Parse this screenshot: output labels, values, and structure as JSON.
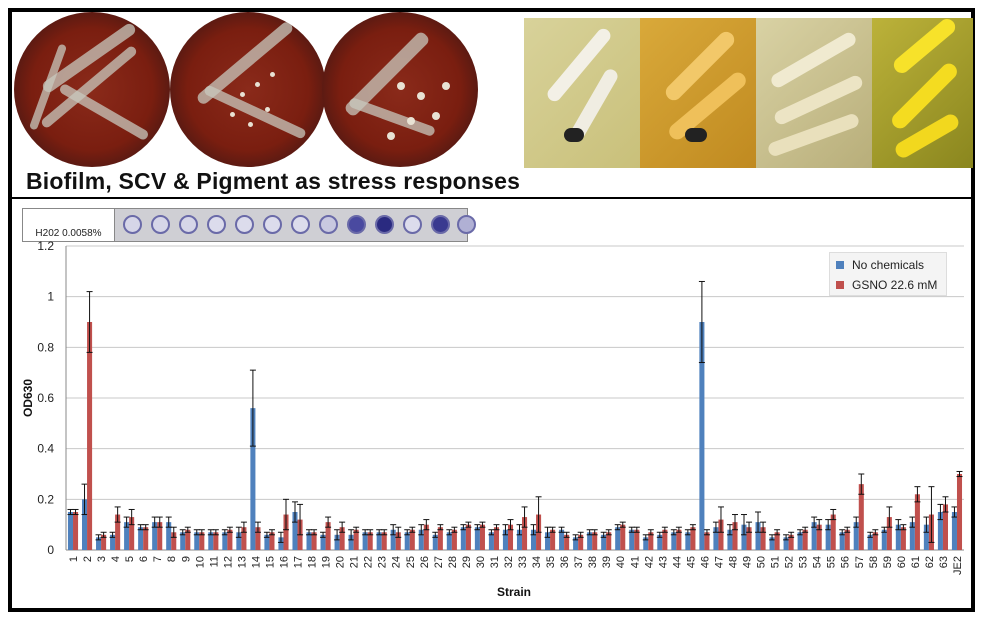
{
  "title": "Biofilm, SCV & Pigment as stress responses",
  "well_strip_label": "H202 0.0058%",
  "photos": {
    "blood_agar_plates": [
      "plate-1",
      "plate-2",
      "plate-3"
    ],
    "pigment_plates": [
      "pigment-1",
      "pigment-2",
      "pigment-3",
      "pigment-4"
    ]
  },
  "legend": [
    {
      "label": "No chemicals",
      "color": "#4f81bd"
    },
    {
      "label": "GSNO 22.6 mM",
      "color": "#c0504d"
    }
  ],
  "chart_data": {
    "type": "bar",
    "title": "",
    "xlabel": "Strain",
    "ylabel": "OD630",
    "ylim": [
      0,
      1.2
    ],
    "yticks": [
      "0",
      "0.2",
      "0.4",
      "0.6",
      "0.8",
      "1",
      "1.2"
    ],
    "grid": true,
    "legend_position": "top-right",
    "categories": [
      "1",
      "2",
      "3",
      "4",
      "5",
      "6",
      "7",
      "8",
      "9",
      "10",
      "11",
      "12",
      "13",
      "14",
      "15",
      "16",
      "17",
      "18",
      "19",
      "20",
      "21",
      "22",
      "23",
      "24",
      "25",
      "26",
      "27",
      "28",
      "29",
      "30",
      "31",
      "32",
      "33",
      "34",
      "35",
      "36",
      "37",
      "38",
      "39",
      "40",
      "41",
      "42",
      "43",
      "44",
      "45",
      "46",
      "47",
      "48",
      "49",
      "50",
      "51",
      "52",
      "53",
      "54",
      "55",
      "56",
      "57",
      "58",
      "59",
      "60",
      "61",
      "62",
      "63",
      "JE2"
    ],
    "series": [
      {
        "name": "No chemicals",
        "color": "#4f81bd",
        "values": [
          0.15,
          0.2,
          0.05,
          0.06,
          0.11,
          0.09,
          0.11,
          0.11,
          0.07,
          0.07,
          0.07,
          0.07,
          0.07,
          0.56,
          0.06,
          0.05,
          0.15,
          0.07,
          0.06,
          0.06,
          0.06,
          0.07,
          0.07,
          0.08,
          0.07,
          0.08,
          0.06,
          0.07,
          0.09,
          0.09,
          0.07,
          0.08,
          0.08,
          0.08,
          0.07,
          0.08,
          0.05,
          0.07,
          0.06,
          0.09,
          0.08,
          0.05,
          0.06,
          0.07,
          0.07,
          0.9,
          0.09,
          0.08,
          0.1,
          0.11,
          0.05,
          0.05,
          0.07,
          0.11,
          0.1,
          0.07,
          0.11,
          0.06,
          0.08,
          0.1,
          0.11,
          0.1,
          0.15,
          0.15
        ],
        "errors": [
          0.01,
          0.06,
          0.01,
          0.01,
          0.02,
          0.01,
          0.02,
          0.02,
          0.01,
          0.01,
          0.01,
          0.01,
          0.02,
          0.15,
          0.01,
          0.02,
          0.04,
          0.01,
          0.01,
          0.02,
          0.02,
          0.01,
          0.01,
          0.02,
          0.01,
          0.02,
          0.01,
          0.01,
          0.01,
          0.01,
          0.01,
          0.02,
          0.02,
          0.02,
          0.02,
          0.01,
          0.01,
          0.01,
          0.01,
          0.01,
          0.01,
          0.01,
          0.01,
          0.01,
          0.01,
          0.16,
          0.02,
          0.02,
          0.04,
          0.04,
          0.01,
          0.01,
          0.01,
          0.02,
          0.02,
          0.01,
          0.02,
          0.01,
          0.01,
          0.02,
          0.02,
          0.03,
          0.03,
          0.02
        ]
      },
      {
        "name": "GSNO 22.6 mM",
        "color": "#c0504d",
        "values": [
          0.15,
          0.9,
          0.06,
          0.14,
          0.13,
          0.09,
          0.11,
          0.07,
          0.08,
          0.07,
          0.07,
          0.08,
          0.09,
          0.09,
          0.07,
          0.14,
          0.12,
          0.07,
          0.11,
          0.09,
          0.08,
          0.07,
          0.07,
          0.07,
          0.08,
          0.1,
          0.09,
          0.08,
          0.1,
          0.1,
          0.09,
          0.1,
          0.13,
          0.14,
          0.08,
          0.06,
          0.06,
          0.07,
          0.07,
          0.1,
          0.08,
          0.07,
          0.08,
          0.08,
          0.09,
          0.07,
          0.12,
          0.11,
          0.09,
          0.09,
          0.07,
          0.06,
          0.08,
          0.1,
          0.14,
          0.08,
          0.26,
          0.07,
          0.13,
          0.09,
          0.22,
          0.14,
          0.18,
          0.3
        ],
        "errors": [
          0.01,
          0.12,
          0.01,
          0.03,
          0.03,
          0.01,
          0.02,
          0.02,
          0.01,
          0.01,
          0.01,
          0.01,
          0.02,
          0.02,
          0.01,
          0.06,
          0.06,
          0.01,
          0.02,
          0.02,
          0.01,
          0.01,
          0.01,
          0.02,
          0.01,
          0.02,
          0.01,
          0.01,
          0.01,
          0.01,
          0.01,
          0.02,
          0.04,
          0.07,
          0.01,
          0.01,
          0.01,
          0.01,
          0.01,
          0.01,
          0.01,
          0.01,
          0.01,
          0.01,
          0.01,
          0.01,
          0.05,
          0.03,
          0.02,
          0.02,
          0.01,
          0.01,
          0.01,
          0.02,
          0.02,
          0.01,
          0.04,
          0.01,
          0.04,
          0.01,
          0.03,
          0.11,
          0.03,
          0.01
        ]
      }
    ]
  }
}
